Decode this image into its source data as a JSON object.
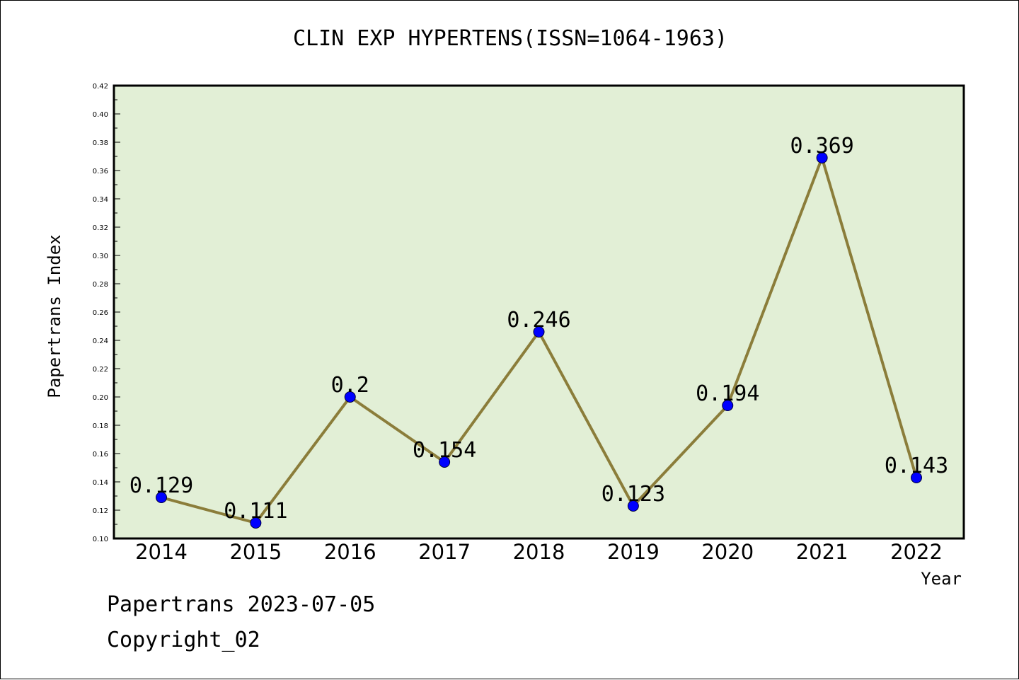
{
  "chart_data": {
    "type": "line",
    "title": "CLIN EXP HYPERTENS(ISSN=1064-1963)",
    "xlabel": "Year",
    "ylabel": "Papertrans Index",
    "categories": [
      "2014",
      "2015",
      "2016",
      "2017",
      "2018",
      "2019",
      "2020",
      "2021",
      "2022"
    ],
    "values": [
      0.129,
      0.111,
      0.2,
      0.154,
      0.246,
      0.123,
      0.194,
      0.369,
      0.143
    ],
    "data_labels": [
      "0.129",
      "0.111",
      "0.2",
      "0.154",
      "0.246",
      "0.123",
      "0.194",
      "0.369",
      "0.143"
    ],
    "ylim": [
      0.1,
      0.42
    ],
    "y_ticks": [
      "0.10",
      "0.12",
      "0.14",
      "0.16",
      "0.18",
      "0.20",
      "0.22",
      "0.24",
      "0.26",
      "0.28",
      "0.30",
      "0.32",
      "0.34",
      "0.36",
      "0.38",
      "0.40",
      "0.42"
    ],
    "grid": false,
    "legend": "none",
    "colors": {
      "plot_background": "#e2efd6",
      "line": "#8b7d3a",
      "marker": "#0000ff"
    }
  },
  "footer": {
    "line1": "Papertrans 2023-07-05",
    "line2": "Copyright_02"
  }
}
